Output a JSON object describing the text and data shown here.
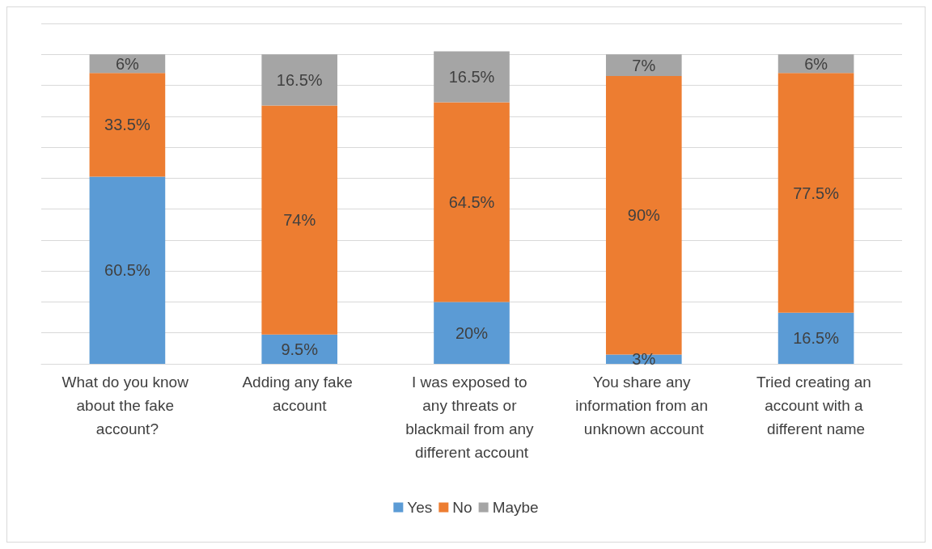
{
  "chart_data": {
    "type": "bar",
    "stacked": true,
    "grid": "y",
    "legend": "bottom",
    "tick_labels": "x",
    "categories": [
      "What do you know about the fake account?",
      "Adding any fake account",
      "I was exposed to any threats or blackmail from any different account",
      "You share any information from an unknown account",
      "Tried creating an account with a different name"
    ],
    "series": [
      {
        "name": "Yes",
        "color": "#5b9bd5",
        "values": [
          60.5,
          9.5,
          20,
          3,
          16.5
        ],
        "value_labels": [
          "60.5%",
          "9.5%",
          "20%",
          "3%",
          "16.5%"
        ]
      },
      {
        "name": "No",
        "color": "#ed7d31",
        "values": [
          33.5,
          74,
          64.5,
          90,
          77.5
        ],
        "value_labels": [
          "33.5%",
          "74%",
          "64.5%",
          "90%",
          "77.5%"
        ]
      },
      {
        "name": "Maybe",
        "color": "#a5a5a5",
        "values": [
          6,
          16.5,
          16.5,
          7,
          6
        ],
        "value_labels": [
          "6%",
          "16.5%",
          "16.5%",
          "7%",
          "6%"
        ]
      }
    ]
  }
}
